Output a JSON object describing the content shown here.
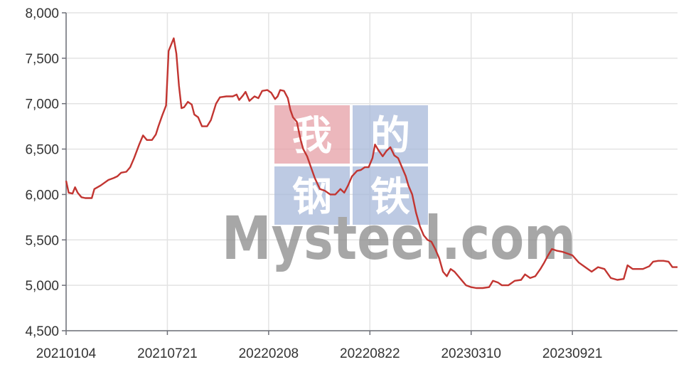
{
  "chart_data": {
    "type": "line",
    "title": "",
    "xlabel": "",
    "ylabel": "",
    "ylim": [
      4500,
      8000
    ],
    "y_ticks": [
      4500,
      5000,
      5500,
      6000,
      6500,
      7000,
      7500,
      8000
    ],
    "y_tick_labels": [
      "4,500",
      "5,000",
      "5,500",
      "6,000",
      "6,500",
      "7,000",
      "7,500",
      "8,000"
    ],
    "x_tick_labels": [
      "20210104",
      "20210721",
      "20220208",
      "20220822",
      "20230310",
      "20230921"
    ],
    "grid": true,
    "legend": "none",
    "series": [
      {
        "color": "#c23531",
        "points": [
          [
            0,
            6150
          ],
          [
            2,
            6020
          ],
          [
            5,
            6010
          ],
          [
            7,
            6080
          ],
          [
            9,
            6020
          ],
          [
            12,
            5970
          ],
          [
            15,
            5960
          ],
          [
            20,
            5960
          ],
          [
            22,
            6060
          ],
          [
            27,
            6100
          ],
          [
            33,
            6160
          ],
          [
            37,
            6180
          ],
          [
            40,
            6200
          ],
          [
            43,
            6240
          ],
          [
            47,
            6250
          ],
          [
            50,
            6300
          ],
          [
            53,
            6400
          ],
          [
            57,
            6550
          ],
          [
            60,
            6650
          ],
          [
            63,
            6600
          ],
          [
            67,
            6600
          ],
          [
            70,
            6660
          ],
          [
            72,
            6750
          ],
          [
            75,
            6870
          ],
          [
            78,
            6980
          ],
          [
            80,
            7580
          ],
          [
            82,
            7650
          ],
          [
            84,
            7720
          ],
          [
            86,
            7550
          ],
          [
            88,
            7200
          ],
          [
            90,
            6950
          ],
          [
            92,
            6960
          ],
          [
            95,
            7020
          ],
          [
            98,
            6990
          ],
          [
            100,
            6880
          ],
          [
            103,
            6850
          ],
          [
            106,
            6750
          ],
          [
            110,
            6750
          ],
          [
            113,
            6820
          ],
          [
            117,
            7000
          ],
          [
            120,
            7070
          ],
          [
            125,
            7080
          ],
          [
            130,
            7080
          ],
          [
            133,
            7100
          ],
          [
            135,
            7040
          ],
          [
            138,
            7090
          ],
          [
            140,
            7130
          ],
          [
            143,
            7030
          ],
          [
            147,
            7080
          ],
          [
            150,
            7060
          ],
          [
            153,
            7140
          ],
          [
            157,
            7150
          ],
          [
            160,
            7120
          ],
          [
            163,
            7050
          ],
          [
            165,
            7080
          ],
          [
            167,
            7150
          ],
          [
            170,
            7140
          ],
          [
            173,
            7060
          ],
          [
            175,
            6930
          ],
          [
            177,
            6850
          ],
          [
            180,
            6800
          ],
          [
            183,
            6600
          ],
          [
            185,
            6500
          ],
          [
            188,
            6420
          ],
          [
            191,
            6300
          ],
          [
            194,
            6180
          ],
          [
            198,
            6060
          ],
          [
            202,
            6040
          ],
          [
            206,
            6000
          ],
          [
            210,
            6000
          ],
          [
            214,
            6060
          ],
          [
            217,
            6020
          ],
          [
            220,
            6100
          ],
          [
            223,
            6200
          ],
          [
            227,
            6260
          ],
          [
            230,
            6270
          ],
          [
            233,
            6300
          ],
          [
            236,
            6300
          ],
          [
            239,
            6400
          ],
          [
            241,
            6550
          ],
          [
            244,
            6480
          ],
          [
            247,
            6420
          ],
          [
            250,
            6480
          ],
          [
            253,
            6520
          ],
          [
            256,
            6430
          ],
          [
            259,
            6400
          ],
          [
            262,
            6300
          ],
          [
            265,
            6200
          ],
          [
            267,
            6100
          ],
          [
            270,
            6000
          ],
          [
            273,
            5800
          ],
          [
            276,
            5650
          ],
          [
            279,
            5550
          ],
          [
            282,
            5500
          ],
          [
            285,
            5480
          ],
          [
            288,
            5400
          ],
          [
            291,
            5300
          ],
          [
            294,
            5150
          ],
          [
            297,
            5100
          ],
          [
            300,
            5180
          ],
          [
            303,
            5150
          ],
          [
            306,
            5100
          ],
          [
            309,
            5050
          ],
          [
            312,
            5000
          ],
          [
            316,
            4980
          ],
          [
            320,
            4970
          ],
          [
            325,
            4970
          ],
          [
            330,
            4980
          ],
          [
            333,
            5050
          ],
          [
            337,
            5030
          ],
          [
            340,
            5000
          ],
          [
            345,
            5000
          ],
          [
            350,
            5050
          ],
          [
            355,
            5060
          ],
          [
            358,
            5120
          ],
          [
            362,
            5080
          ],
          [
            366,
            5100
          ],
          [
            370,
            5180
          ],
          [
            373,
            5250
          ],
          [
            376,
            5330
          ],
          [
            379,
            5400
          ],
          [
            383,
            5380
          ],
          [
            387,
            5370
          ],
          [
            391,
            5350
          ],
          [
            395,
            5330
          ],
          [
            400,
            5250
          ],
          [
            405,
            5200
          ],
          [
            410,
            5150
          ],
          [
            415,
            5200
          ],
          [
            420,
            5180
          ],
          [
            425,
            5080
          ],
          [
            430,
            5060
          ],
          [
            435,
            5070
          ],
          [
            438,
            5220
          ],
          [
            442,
            5180
          ],
          [
            446,
            5180
          ],
          [
            450,
            5180
          ],
          [
            455,
            5210
          ],
          [
            458,
            5260
          ],
          [
            462,
            5270
          ],
          [
            466,
            5270
          ],
          [
            470,
            5260
          ],
          [
            473,
            5200
          ],
          [
            477,
            5200
          ]
        ]
      }
    ]
  },
  "watermark": {
    "cells": [
      "我",
      "的",
      "钢",
      "铁"
    ],
    "cell_colors": [
      "#e6a0a6",
      "#a8b9da",
      "#a8b9da",
      "#a8b9da"
    ],
    "logo": "Mysteel.com"
  }
}
